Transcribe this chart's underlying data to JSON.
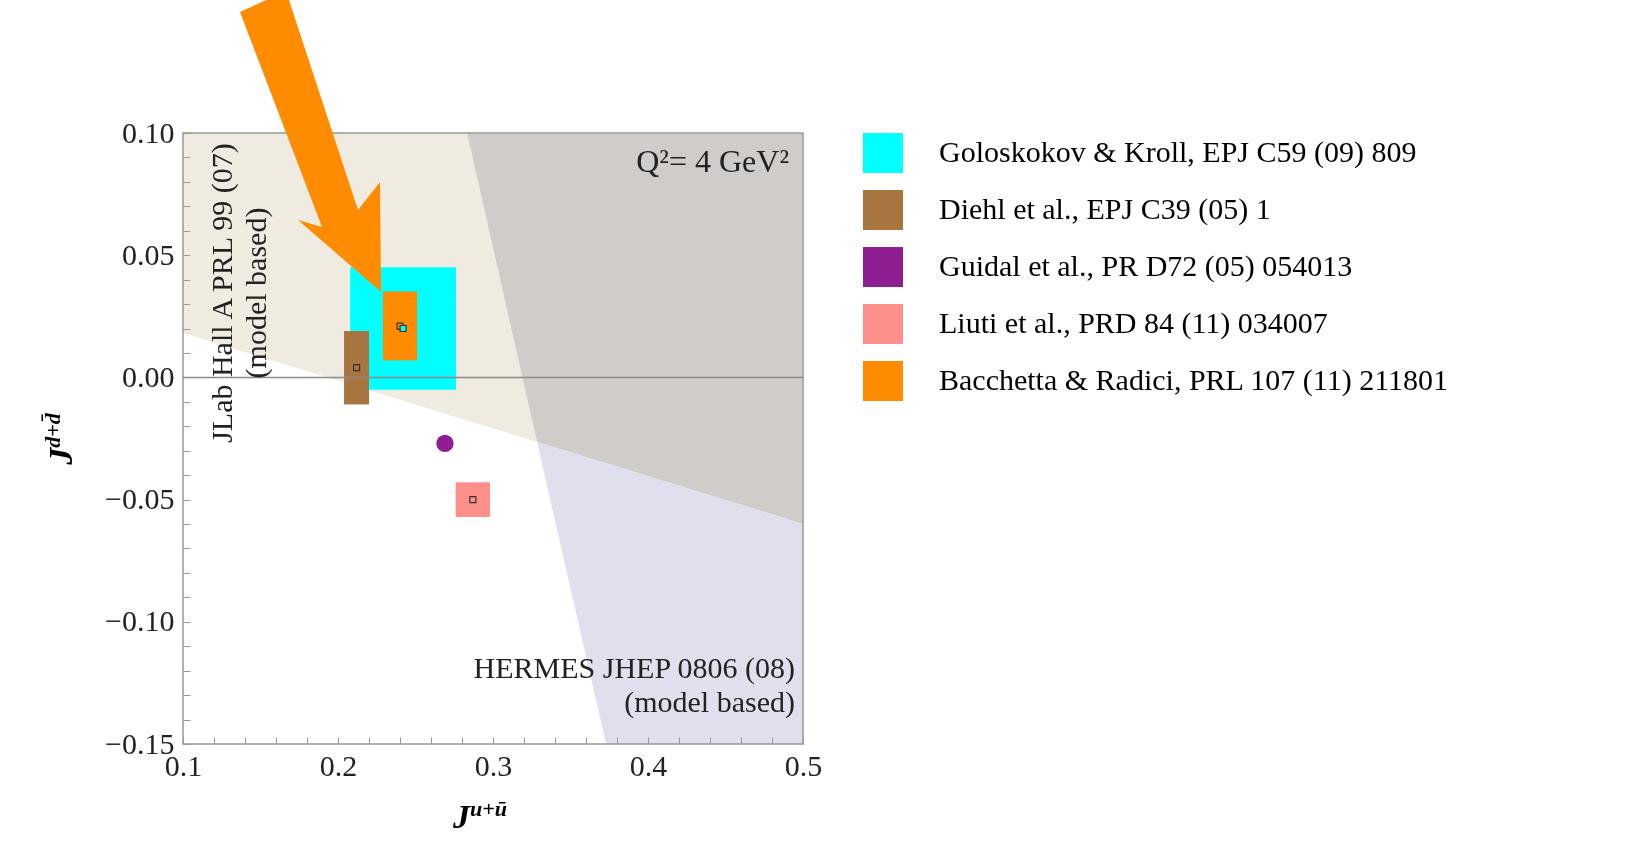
{
  "chart_data": {
    "type": "scatter",
    "xlabel": "J$^{u+ū}$",
    "ylabel": "J$^{d+d̄}$",
    "xlim": [
      0.1,
      0.5
    ],
    "ylim": [
      -0.15,
      0.1
    ],
    "xticks": [
      0.1,
      {
        "value": 0.12,
        "label": null
      },
      {
        "value": 0.14,
        "label": null
      },
      {
        "value": 0.16,
        "label": null
      },
      {
        "value": 0.18,
        "label": null
      },
      0.2,
      {
        "value": 0.22,
        "label": null
      },
      {
        "value": 0.24,
        "label": null
      },
      {
        "value": 0.26,
        "label": null
      },
      {
        "value": 0.28,
        "label": null
      },
      0.3,
      {
        "value": 0.32,
        "label": null
      },
      {
        "value": 0.34,
        "label": null
      },
      {
        "value": 0.36,
        "label": null
      },
      {
        "value": 0.38,
        "label": null
      },
      0.4,
      {
        "value": 0.42,
        "label": null
      },
      {
        "value": 0.44,
        "label": null
      },
      {
        "value": 0.46,
        "label": null
      },
      {
        "value": 0.48,
        "label": null
      },
      0.5
    ],
    "yticks": [
      {
        "value": -0.15,
        "label": "−0.15"
      },
      {
        "value": -0.14,
        "label": null
      },
      {
        "value": -0.13,
        "label": null
      },
      {
        "value": -0.12,
        "label": null
      },
      {
        "value": -0.11,
        "label": null
      },
      {
        "value": -0.1,
        "label": "−0.10"
      },
      {
        "value": -0.09,
        "label": null
      },
      {
        "value": -0.08,
        "label": null
      },
      {
        "value": -0.07,
        "label": null
      },
      {
        "value": -0.06,
        "label": null
      },
      {
        "value": -0.05,
        "label": "−0.05"
      },
      {
        "value": -0.04,
        "label": null
      },
      {
        "value": -0.03,
        "label": null
      },
      {
        "value": -0.02,
        "label": null
      },
      {
        "value": -0.01,
        "label": null
      },
      {
        "value": 0,
        "label": "0.00"
      },
      {
        "value": 0.01,
        "label": null
      },
      {
        "value": 0.02,
        "label": null
      },
      {
        "value": 0.03,
        "label": null
      },
      {
        "value": 0.04,
        "label": null
      },
      {
        "value": 0.05,
        "label": "0.05"
      },
      {
        "value": 0.06,
        "label": null
      },
      {
        "value": 0.07,
        "label": null
      },
      {
        "value": 0.08,
        "label": null
      },
      {
        "value": 0.09,
        "label": null
      },
      {
        "value": 0.1,
        "label": "0.10"
      }
    ],
    "legend": "right",
    "grid": false,
    "annotations": [
      "Q²= 4 GeV²",
      "JLab Hall A PRL 99 (07)\n(model based)",
      "HERMES JHEP 0806 (08)\n(model based)"
    ],
    "ref_lines": [
      {
        "axis": "y",
        "value": 0,
        "color": "#8a8a8a"
      }
    ],
    "series": [
      {
        "name": "Goloskokov & Kroll, EPJ C59 (09) 809",
        "color": "#00ffff",
        "marker": "square",
        "x": [
          0.242
        ],
        "values": [
          0.02
        ],
        "xerrors": [
          0.034
        ],
        "errors": [
          0.025
        ]
      },
      {
        "name": "Diehl et al., EPJ C39 (05) 1",
        "color": "#a8743f",
        "marker": "square",
        "x": [
          0.212
        ],
        "values": [
          0.004
        ],
        "xerrors": [
          0.008
        ],
        "errors": [
          0.015
        ]
      },
      {
        "name": "Guidal et al., PR D72 (05) 054013",
        "color": "#8e1f92",
        "marker": "circle",
        "x": [
          0.269
        ],
        "values": [
          -0.027
        ]
      },
      {
        "name": "Liuti et al., PRD 84 (11) 034007",
        "color": "#ff8f8a",
        "marker": "square",
        "x": [
          0.287
        ],
        "values": [
          -0.05
        ],
        "xerrors": [
          0.011
        ],
        "errors": [
          0.007
        ]
      },
      {
        "name": "Bacchetta & Radici, PRL 107 (11) 211801",
        "color": "#ff8c00",
        "marker": "square",
        "x": [
          0.24
        ],
        "values": [
          0.021
        ],
        "xerrors": [
          0.011
        ],
        "errors": [
          0.014
        ]
      }
    ]
  }
}
